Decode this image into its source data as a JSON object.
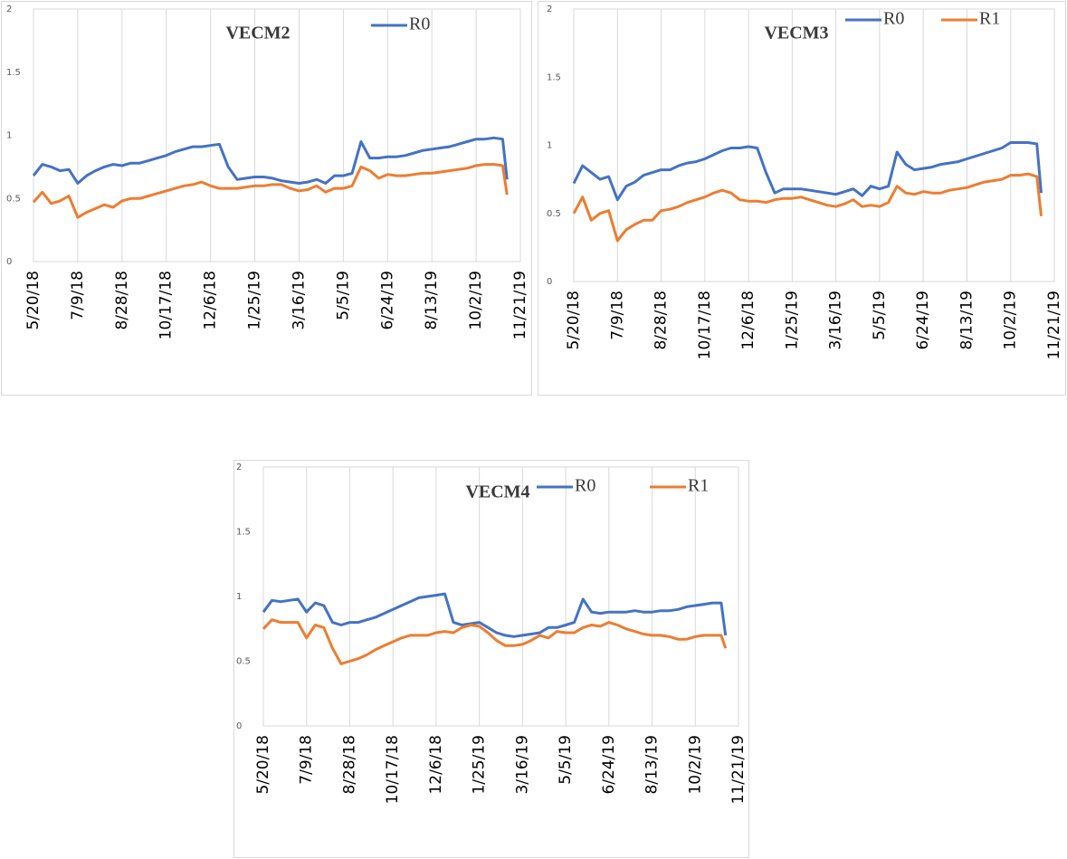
{
  "chart_data": [
    {
      "type": "line",
      "title": "VECM2",
      "x": [
        "5/20/18",
        "5/30/18",
        "6/9/18",
        "6/19/18",
        "6/29/18",
        "7/9/18",
        "7/19/18",
        "7/29/18",
        "8/8/18",
        "8/18/18",
        "8/28/18",
        "9/7/18",
        "9/17/18",
        "9/27/18",
        "10/7/18",
        "10/17/18",
        "10/27/18",
        "11/6/18",
        "11/16/18",
        "11/26/18",
        "12/6/18",
        "12/16/18",
        "12/26/18",
        "1/5/19",
        "1/15/19",
        "1/25/19",
        "2/4/19",
        "2/14/19",
        "2/24/19",
        "3/6/19",
        "3/16/19",
        "3/26/19",
        "4/5/19",
        "4/15/19",
        "4/25/19",
        "5/5/19",
        "5/15/19",
        "5/25/19",
        "6/4/19",
        "6/14/19",
        "6/24/19",
        "7/4/19",
        "7/14/19",
        "7/24/19",
        "8/3/19",
        "8/13/19",
        "8/23/19",
        "9/2/19",
        "9/12/19",
        "9/22/19",
        "10/2/19",
        "10/12/19",
        "10/22/19",
        "11/1/19",
        "11/6/19"
      ],
      "series": [
        {
          "name": "R0",
          "color": "#4472c4",
          "values": [
            0.68,
            0.77,
            0.75,
            0.72,
            0.73,
            0.62,
            0.68,
            0.72,
            0.75,
            0.77,
            0.76,
            0.78,
            0.78,
            0.8,
            0.82,
            0.84,
            0.87,
            0.89,
            0.91,
            0.91,
            0.92,
            0.93,
            0.75,
            0.65,
            0.66,
            0.67,
            0.67,
            0.66,
            0.64,
            0.63,
            0.62,
            0.63,
            0.65,
            0.62,
            0.68,
            0.68,
            0.7,
            0.95,
            0.82,
            0.82,
            0.83,
            0.83,
            0.84,
            0.86,
            0.88,
            0.89,
            0.9,
            0.91,
            0.93,
            0.95,
            0.97,
            0.97,
            0.98,
            0.97,
            0.65
          ]
        },
        {
          "name": null,
          "color": "#ed7d31",
          "values": [
            0.47,
            0.55,
            0.46,
            0.48,
            0.52,
            0.35,
            0.39,
            0.42,
            0.45,
            0.43,
            0.48,
            0.5,
            0.5,
            0.52,
            0.54,
            0.56,
            0.58,
            0.6,
            0.61,
            0.63,
            0.6,
            0.58,
            0.58,
            0.58,
            0.59,
            0.6,
            0.6,
            0.61,
            0.61,
            0.58,
            0.56,
            0.57,
            0.6,
            0.55,
            0.58,
            0.58,
            0.6,
            0.75,
            0.72,
            0.66,
            0.69,
            0.68,
            0.68,
            0.69,
            0.7,
            0.7,
            0.71,
            0.72,
            0.73,
            0.74,
            0.76,
            0.77,
            0.77,
            0.76,
            0.53
          ]
        }
      ],
      "xlim": [
        "5/20/18",
        "11/21/19"
      ],
      "xticks": [
        "5/20/18",
        "7/9/18",
        "8/28/18",
        "10/17/18",
        "12/6/18",
        "1/25/19",
        "3/16/19",
        "5/5/19",
        "6/24/19",
        "8/13/19",
        "10/2/19",
        "11/21/19"
      ],
      "ylim": [
        0,
        2
      ],
      "yticks": [
        0,
        0.5,
        1,
        1.5,
        2
      ],
      "grid": true
    },
    {
      "type": "line",
      "title": "VECM3",
      "x": [
        "5/20/18",
        "5/30/18",
        "6/9/18",
        "6/19/18",
        "6/29/18",
        "7/9/18",
        "7/19/18",
        "7/29/18",
        "8/8/18",
        "8/18/18",
        "8/28/18",
        "9/7/18",
        "9/17/18",
        "9/27/18",
        "10/7/18",
        "10/17/18",
        "10/27/18",
        "11/6/18",
        "11/16/18",
        "11/26/18",
        "12/6/18",
        "12/16/18",
        "12/26/18",
        "1/5/19",
        "1/15/19",
        "1/25/19",
        "2/4/19",
        "2/14/19",
        "2/24/19",
        "3/6/19",
        "3/16/19",
        "3/26/19",
        "4/5/19",
        "4/15/19",
        "4/25/19",
        "5/5/19",
        "5/15/19",
        "5/25/19",
        "6/4/19",
        "6/14/19",
        "6/24/19",
        "7/4/19",
        "7/14/19",
        "7/24/19",
        "8/3/19",
        "8/13/19",
        "8/23/19",
        "9/2/19",
        "9/12/19",
        "9/22/19",
        "10/2/19",
        "10/12/19",
        "10/22/19",
        "11/1/19",
        "11/6/19"
      ],
      "series": [
        {
          "name": "R0",
          "color": "#4472c4",
          "values": [
            0.72,
            0.85,
            0.8,
            0.75,
            0.77,
            0.6,
            0.7,
            0.73,
            0.78,
            0.8,
            0.82,
            0.82,
            0.85,
            0.87,
            0.88,
            0.9,
            0.93,
            0.96,
            0.98,
            0.98,
            0.99,
            0.98,
            0.8,
            0.65,
            0.68,
            0.68,
            0.68,
            0.67,
            0.66,
            0.65,
            0.64,
            0.66,
            0.68,
            0.63,
            0.7,
            0.68,
            0.7,
            0.95,
            0.86,
            0.82,
            0.83,
            0.84,
            0.86,
            0.87,
            0.88,
            0.9,
            0.92,
            0.94,
            0.96,
            0.98,
            1.02,
            1.02,
            1.02,
            1.01,
            0.65
          ]
        },
        {
          "name": "R1",
          "color": "#ed7d31",
          "values": [
            0.5,
            0.62,
            0.45,
            0.5,
            0.52,
            0.3,
            0.38,
            0.42,
            0.45,
            0.45,
            0.52,
            0.53,
            0.55,
            0.58,
            0.6,
            0.62,
            0.65,
            0.67,
            0.65,
            0.6,
            0.59,
            0.59,
            0.58,
            0.6,
            0.61,
            0.61,
            0.62,
            0.6,
            0.58,
            0.56,
            0.55,
            0.57,
            0.6,
            0.55,
            0.56,
            0.55,
            0.58,
            0.7,
            0.65,
            0.64,
            0.66,
            0.65,
            0.65,
            0.67,
            0.68,
            0.69,
            0.71,
            0.73,
            0.74,
            0.75,
            0.78,
            0.78,
            0.79,
            0.77,
            0.48
          ]
        }
      ],
      "xlim": [
        "5/20/18",
        "11/21/19"
      ],
      "xticks": [
        "5/20/18",
        "7/9/18",
        "8/28/18",
        "10/17/18",
        "12/6/18",
        "1/25/19",
        "3/16/19",
        "5/5/19",
        "6/24/19",
        "8/13/19",
        "10/2/19",
        "11/21/19"
      ],
      "ylim": [
        0,
        2
      ],
      "yticks": [
        0,
        0.5,
        1,
        1.5,
        2
      ],
      "grid": true
    },
    {
      "type": "line",
      "title": "VECM4",
      "x": [
        "5/20/18",
        "5/30/18",
        "6/9/18",
        "6/19/18",
        "6/29/18",
        "7/9/18",
        "7/19/18",
        "7/29/18",
        "8/8/18",
        "8/18/18",
        "8/28/18",
        "9/7/18",
        "9/17/18",
        "9/27/18",
        "10/7/18",
        "10/17/18",
        "10/27/18",
        "11/6/18",
        "11/16/18",
        "11/26/18",
        "12/6/18",
        "12/16/18",
        "12/26/18",
        "1/5/19",
        "1/15/19",
        "1/25/19",
        "2/4/19",
        "2/14/19",
        "2/24/19",
        "3/6/19",
        "3/16/19",
        "3/26/19",
        "4/5/19",
        "4/15/19",
        "4/25/19",
        "5/5/19",
        "5/15/19",
        "5/25/19",
        "6/4/19",
        "6/14/19",
        "6/24/19",
        "7/4/19",
        "7/14/19",
        "7/24/19",
        "8/3/19",
        "8/13/19",
        "8/23/19",
        "9/2/19",
        "9/12/19",
        "9/22/19",
        "10/2/19",
        "10/12/19",
        "10/22/19",
        "11/1/19",
        "11/6/19"
      ],
      "series": [
        {
          "name": "R0",
          "color": "#4472c4",
          "values": [
            0.88,
            0.97,
            0.96,
            0.97,
            0.98,
            0.88,
            0.95,
            0.93,
            0.8,
            0.78,
            0.8,
            0.8,
            0.82,
            0.84,
            0.87,
            0.9,
            0.93,
            0.96,
            0.99,
            1.0,
            1.01,
            1.02,
            0.8,
            0.78,
            0.79,
            0.8,
            0.76,
            0.72,
            0.7,
            0.69,
            0.7,
            0.71,
            0.72,
            0.76,
            0.76,
            0.78,
            0.8,
            0.98,
            0.88,
            0.87,
            0.88,
            0.88,
            0.88,
            0.89,
            0.88,
            0.88,
            0.89,
            0.89,
            0.9,
            0.92,
            0.93,
            0.94,
            0.95,
            0.95,
            0.7
          ]
        },
        {
          "name": "R1",
          "color": "#ed7d31",
          "values": [
            0.75,
            0.82,
            0.8,
            0.8,
            0.8,
            0.68,
            0.78,
            0.76,
            0.6,
            0.48,
            0.5,
            0.52,
            0.55,
            0.59,
            0.62,
            0.65,
            0.68,
            0.7,
            0.7,
            0.7,
            0.72,
            0.73,
            0.72,
            0.76,
            0.78,
            0.77,
            0.72,
            0.66,
            0.62,
            0.62,
            0.63,
            0.66,
            0.7,
            0.68,
            0.73,
            0.72,
            0.72,
            0.76,
            0.78,
            0.77,
            0.8,
            0.78,
            0.75,
            0.73,
            0.71,
            0.7,
            0.7,
            0.69,
            0.67,
            0.67,
            0.69,
            0.7,
            0.7,
            0.7,
            0.6
          ]
        }
      ],
      "xlim": [
        "5/20/18",
        "11/21/19"
      ],
      "xticks": [
        "5/20/18",
        "7/9/18",
        "8/28/18",
        "10/17/18",
        "12/6/18",
        "1/25/19",
        "3/16/19",
        "5/5/19",
        "6/24/19",
        "8/13/19",
        "10/2/19",
        "11/21/19"
      ],
      "ylim": [
        0,
        2
      ],
      "yticks": [
        0,
        0.5,
        1,
        1.5,
        2
      ],
      "grid": true
    }
  ]
}
